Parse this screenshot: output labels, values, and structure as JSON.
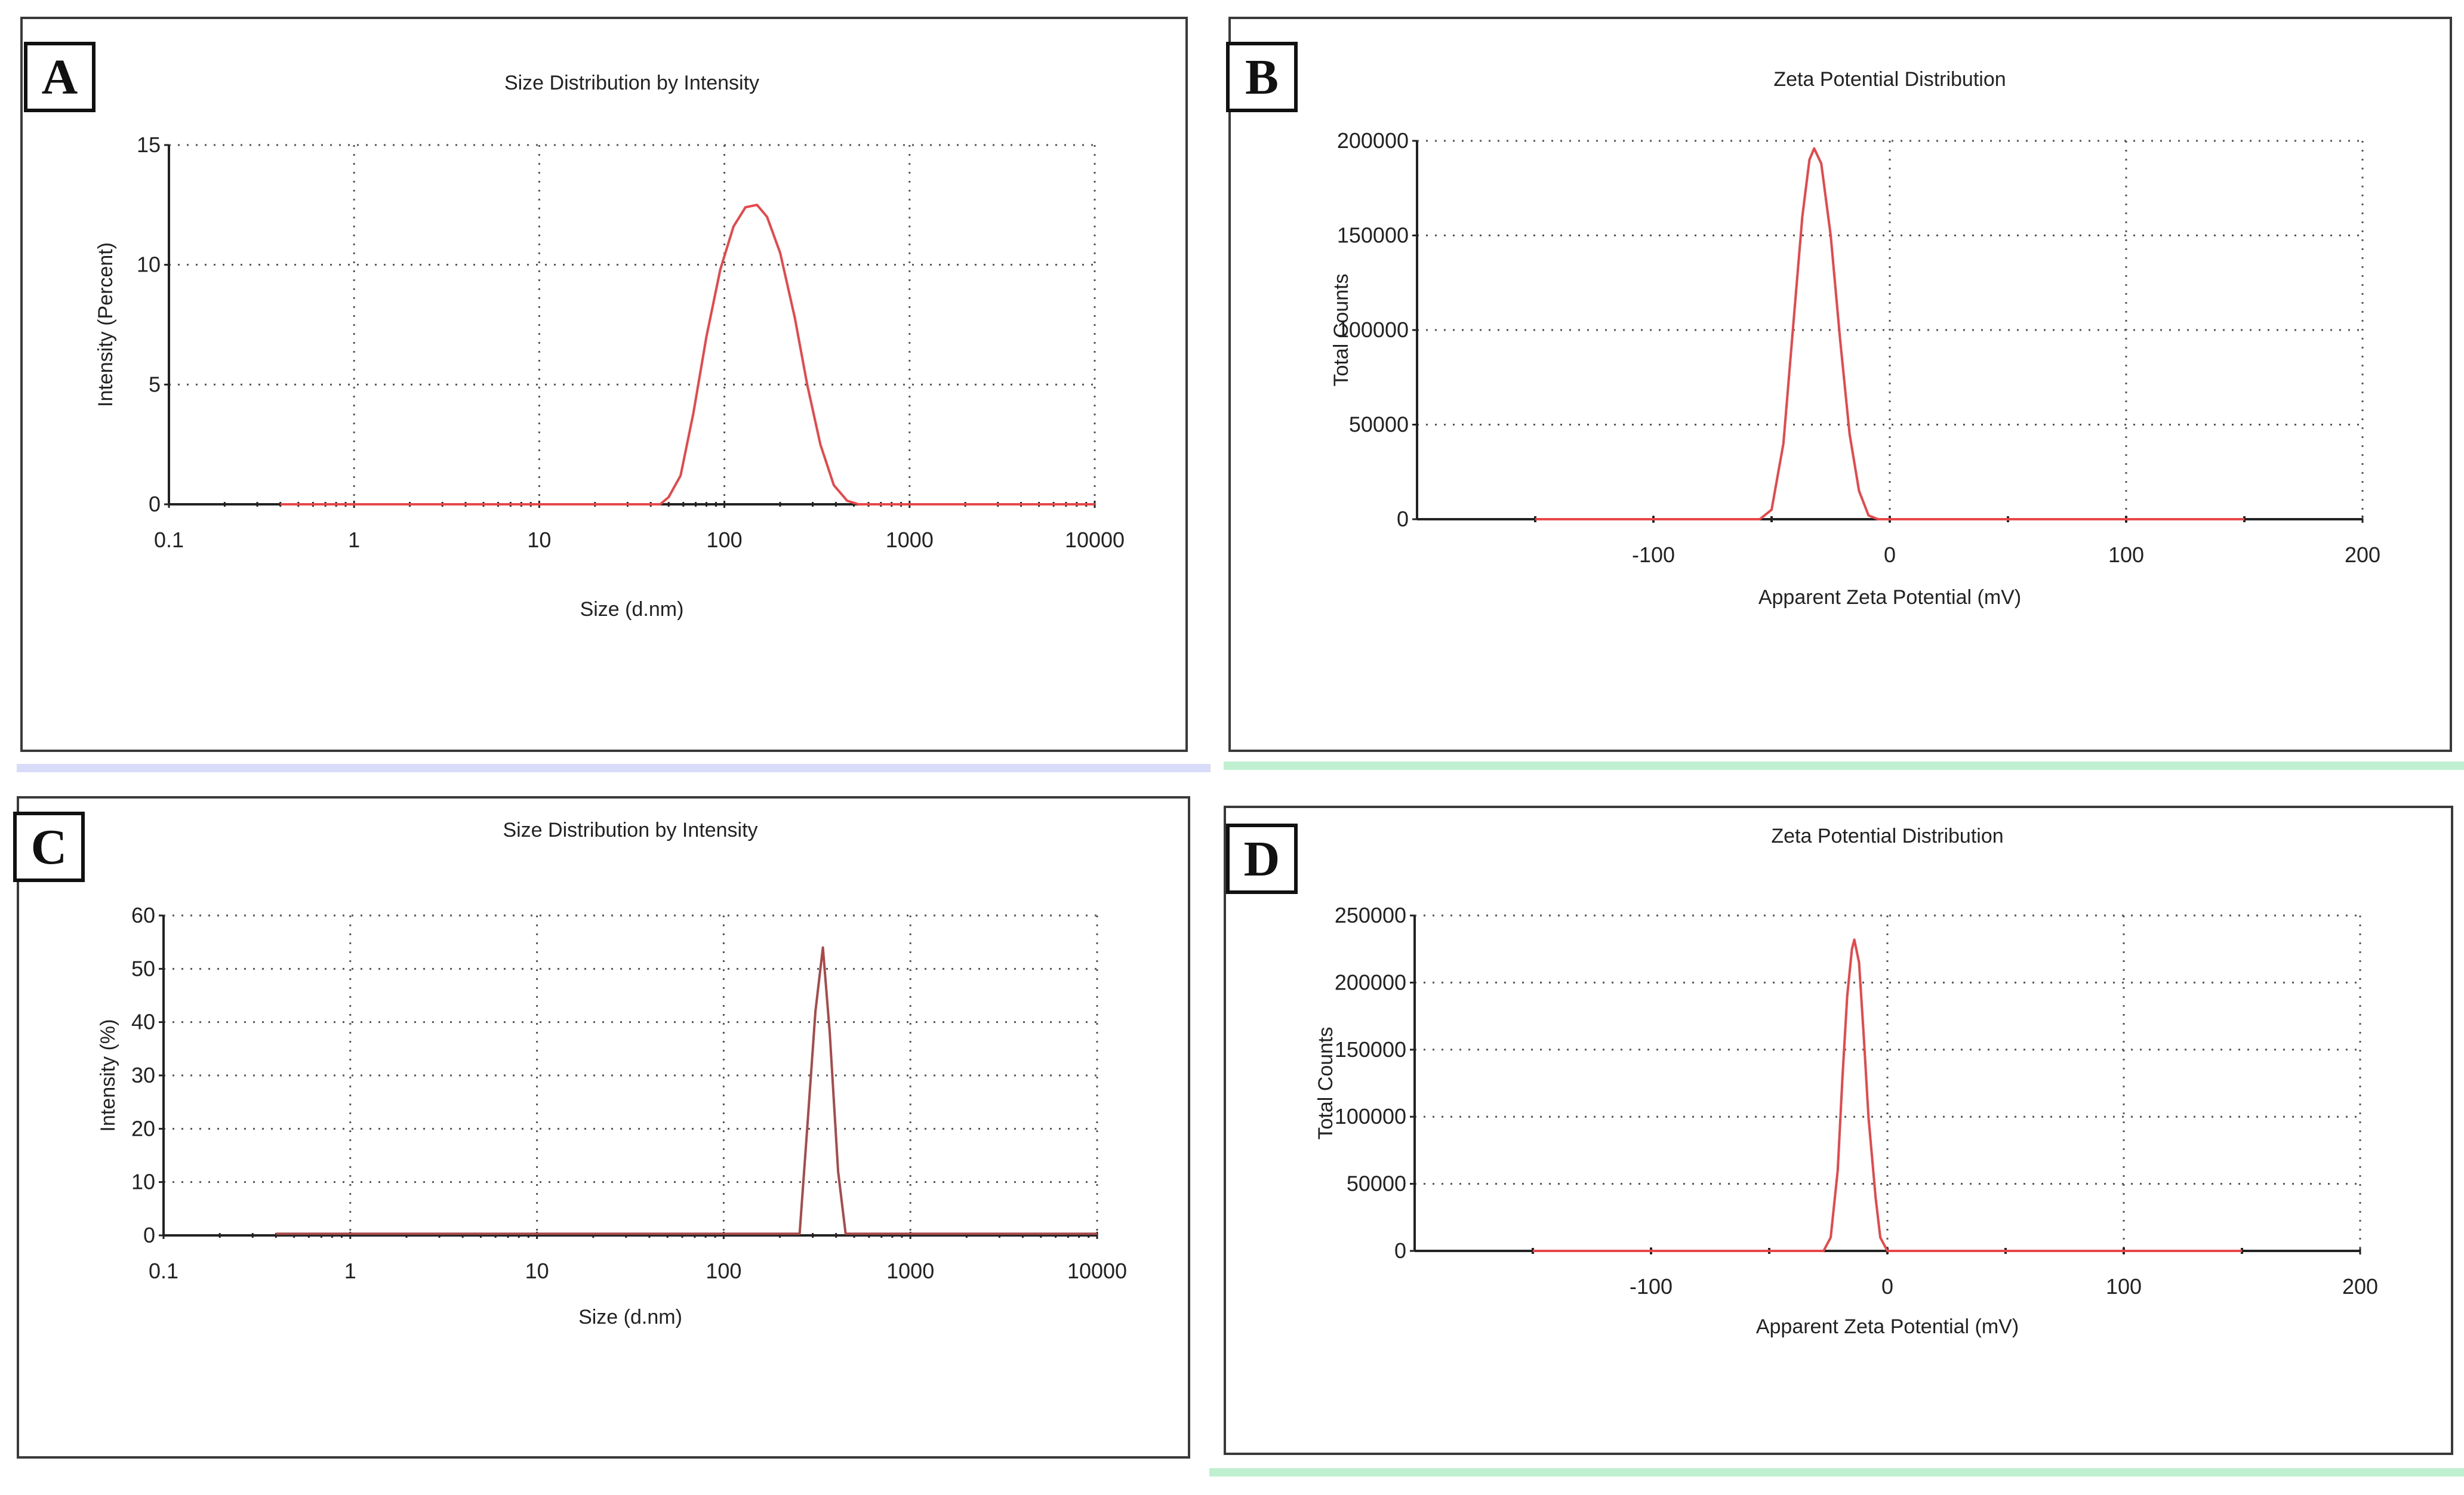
{
  "panels": [
    {
      "id": "A",
      "label": "A"
    },
    {
      "id": "B",
      "label": "B"
    },
    {
      "id": "C",
      "label": "C"
    },
    {
      "id": "D",
      "label": "D"
    }
  ],
  "colors": {
    "curve": "#e8474a",
    "curve_dark": "#a84a4a",
    "axis": "#222222",
    "grid": "#555555",
    "separator_blue": "#d9dcf8",
    "separator_green": "#bff0cf"
  },
  "chart_data": [
    {
      "panel": "A",
      "type": "line",
      "title": "Size Distribution by Intensity",
      "xlabel": "Size (d.nm)",
      "ylabel": "Intensity (Percent)",
      "xscale": "log",
      "xlim": [
        0.1,
        10000
      ],
      "ylim": [
        0,
        15
      ],
      "xticks": [
        0.1,
        1,
        10,
        100,
        1000,
        10000
      ],
      "xtick_labels": [
        "0.1",
        "1",
        "10",
        "100",
        "1000",
        "10000"
      ],
      "yticks": [
        0,
        5,
        10,
        15
      ],
      "ytick_labels": [
        "0",
        "5",
        "10",
        "15"
      ],
      "grid": "dotted",
      "series": [
        {
          "x": [
            0.4,
            45,
            50,
            58,
            68,
            80,
            95,
            112,
            130,
            150,
            170,
            200,
            240,
            280,
            330,
            390,
            460,
            530,
            10000
          ],
          "y": [
            0,
            0,
            0.3,
            1.2,
            3.8,
            7.0,
            9.8,
            11.6,
            12.4,
            12.5,
            12.0,
            10.5,
            7.8,
            5.0,
            2.5,
            0.8,
            0.15,
            0,
            0
          ]
        }
      ]
    },
    {
      "panel": "B",
      "type": "line",
      "title": "Zeta Potential Distribution",
      "xlabel": "Apparent Zeta Potential (mV)",
      "ylabel": "Total Counts",
      "xlim": [
        -200,
        200
      ],
      "ylim": [
        0,
        200000
      ],
      "xticks": [
        -100,
        0,
        100,
        200
      ],
      "xtick_labels": [
        "-100",
        "0",
        "100",
        "200"
      ],
      "yticks": [
        0,
        50000,
        100000,
        150000,
        200000
      ],
      "ytick_labels": [
        "0",
        "50000",
        "100000",
        "150000",
        "200000"
      ],
      "grid": "dotted",
      "series": [
        {
          "x": [
            -150,
            -55,
            -50,
            -45,
            -41,
            -37,
            -34,
            -32,
            -29,
            -25,
            -21,
            -17,
            -13,
            -9,
            -5,
            150
          ],
          "y": [
            0,
            0,
            5000,
            40000,
            100000,
            160000,
            190000,
            196000,
            188000,
            150000,
            95000,
            45000,
            15000,
            2000,
            0,
            0
          ]
        }
      ]
    },
    {
      "panel": "C",
      "type": "line",
      "title": "Size Distribution by Intensity",
      "xlabel": "Size (d.nm)",
      "ylabel": "Intensity (%)",
      "xscale": "log",
      "xlim": [
        0.1,
        10000
      ],
      "ylim": [
        0,
        60
      ],
      "xticks": [
        0.1,
        1,
        10,
        100,
        1000,
        10000
      ],
      "xtick_labels": [
        "0.1",
        "1",
        "10",
        "100",
        "1000",
        "10000"
      ],
      "yticks": [
        0,
        10,
        20,
        30,
        40,
        50,
        60
      ],
      "ytick_labels": [
        "0",
        "10",
        "20",
        "30",
        "40",
        "50",
        "60"
      ],
      "grid": "dotted",
      "series": [
        {
          "x": [
            0.4,
            255,
            280,
            310,
            340,
            370,
            410,
            450,
            10000
          ],
          "y": [
            0.3,
            0.3,
            20,
            42,
            54,
            38,
            12,
            0.3,
            0.3
          ]
        }
      ]
    },
    {
      "panel": "D",
      "type": "line",
      "title": "Zeta Potential Distribution",
      "xlabel": "Apparent Zeta Potential (mV)",
      "ylabel": "Total Counts",
      "xlim": [
        -200,
        200
      ],
      "ylim": [
        0,
        250000
      ],
      "xticks": [
        -100,
        0,
        100,
        200
      ],
      "xtick_labels": [
        "-100",
        "0",
        "100",
        "200"
      ],
      "yticks": [
        0,
        50000,
        100000,
        150000,
        200000,
        250000
      ],
      "ytick_labels": [
        "0",
        "50000",
        "100000",
        "150000",
        "200000",
        "250000"
      ],
      "grid": "dotted",
      "series": [
        {
          "x": [
            -150,
            -27,
            -24,
            -21,
            -19,
            -17,
            -15,
            -14,
            -12,
            -10,
            -8,
            -5,
            -3,
            0,
            150
          ],
          "y": [
            0,
            0,
            10000,
            60000,
            130000,
            190000,
            225000,
            232000,
            215000,
            160000,
            100000,
            40000,
            10000,
            0,
            0
          ]
        }
      ]
    }
  ]
}
